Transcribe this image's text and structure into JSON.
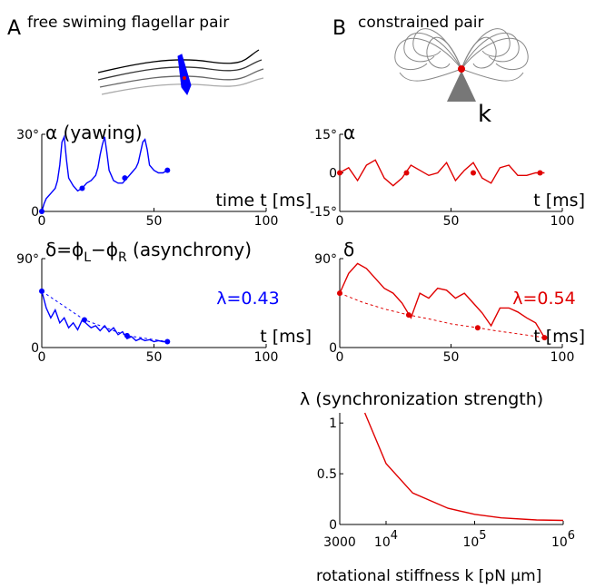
{
  "panels": [
    {
      "letter": "A",
      "title": "free swiming flagellar pair"
    },
    {
      "letter": "B",
      "title": "constrained pair"
    }
  ],
  "schematic_label": "k",
  "chart_data": [
    {
      "type": "line",
      "ylabel": [
        "α (yawing)"
      ],
      "xlabel": "time t [ms]",
      "xlim": [
        0,
        100
      ],
      "xticks": [
        0,
        50,
        100
      ],
      "ylim": [
        0,
        30
      ],
      "yticks": [
        {
          "value": 30,
          "label": "30°"
        },
        0
      ],
      "series": [
        {
          "color": "#0000ff",
          "x": [
            0,
            1,
            2,
            3,
            4,
            5,
            6,
            7,
            8,
            9,
            10,
            11,
            12,
            14,
            16,
            18,
            20,
            22,
            24,
            25,
            26,
            27,
            28,
            29,
            30,
            32,
            34,
            36,
            38,
            40,
            42,
            43,
            44,
            45,
            46,
            47,
            48,
            50,
            52,
            54,
            56
          ],
          "values": [
            0,
            3,
            5,
            6,
            7,
            8,
            9,
            12,
            18,
            27,
            29,
            20,
            13,
            10,
            8,
            9,
            11,
            12,
            14,
            17,
            22,
            26,
            29,
            23,
            16,
            12,
            11,
            11,
            13,
            15,
            17,
            19,
            23,
            27,
            28,
            24,
            18,
            16,
            15,
            15,
            16
          ]
        },
        {
          "color": "#0000ff",
          "marker": true,
          "x": [
            0,
            18,
            37,
            56
          ],
          "values": [
            0,
            9,
            13,
            16
          ]
        }
      ]
    },
    {
      "type": "line",
      "ylabel": [
        "δ=ϕ",
        "L",
        "−ϕ",
        "R",
        " (asynchrony)"
      ],
      "xlabel": "t [ms]",
      "annotation": "λ=0.43",
      "annotation_color": "#0000ff",
      "xlim": [
        0,
        100
      ],
      "xticks": [
        0,
        50,
        100
      ],
      "ylim": [
        0,
        90
      ],
      "yticks": [
        {
          "value": 90,
          "label": "90°"
        },
        0
      ],
      "series": [
        {
          "color": "#0000ff",
          "x": [
            0,
            2,
            4,
            6,
            8,
            10,
            12,
            14,
            16,
            18,
            20,
            22,
            24,
            26,
            28,
            30,
            32,
            34,
            36,
            38,
            40,
            42,
            44,
            46,
            48,
            50,
            52,
            54,
            56
          ],
          "values": [
            57,
            40,
            30,
            38,
            25,
            30,
            20,
            25,
            18,
            28,
            24,
            20,
            22,
            17,
            22,
            16,
            20,
            13,
            16,
            9,
            11,
            7,
            9,
            7,
            8,
            6,
            7,
            6,
            6
          ]
        },
        {
          "color": "#0000ff",
          "style": "dashed",
          "x": [
            0,
            19,
            38,
            56
          ],
          "values": [
            57,
            28,
            12,
            6
          ]
        },
        {
          "color": "#0000ff",
          "marker": true,
          "x": [
            0,
            19,
            38,
            56
          ],
          "values": [
            57,
            28,
            12,
            6
          ]
        }
      ]
    },
    {
      "type": "line",
      "ylabel": [
        "α"
      ],
      "xlabel": "t [ms]",
      "xlim": [
        0,
        100
      ],
      "xticks": [
        0,
        50,
        100
      ],
      "ylim": [
        -15,
        15
      ],
      "yticks": [
        {
          "value": 15,
          "label": "15°"
        },
        0,
        {
          "value": -15,
          "label": "-15°"
        }
      ],
      "series": [
        {
          "color": "#e00000",
          "x": [
            0,
            4,
            8,
            12,
            16,
            20,
            24,
            28,
            32,
            36,
            40,
            44,
            48,
            52,
            56,
            60,
            64,
            68,
            72,
            76,
            80,
            84,
            88,
            92
          ],
          "values": [
            0,
            2,
            -3,
            3,
            5,
            -2,
            -5,
            -2,
            3,
            1,
            -1,
            0,
            4,
            -3,
            1,
            4,
            -2,
            -4,
            2,
            3,
            -1,
            -1,
            0,
            0
          ]
        },
        {
          "color": "#e00000",
          "marker": true,
          "x": [
            0,
            30,
            60,
            90
          ],
          "values": [
            0,
            0,
            0,
            0
          ]
        }
      ]
    },
    {
      "type": "line",
      "ylabel": [
        "δ"
      ],
      "xlabel": "t [ms]",
      "annotation": "λ=0.54",
      "annotation_color": "#e00000",
      "xlim": [
        0,
        100
      ],
      "xticks": [
        0,
        50,
        100
      ],
      "ylim": [
        0,
        90
      ],
      "yticks": [
        {
          "value": 90,
          "label": "90°"
        },
        0
      ],
      "series": [
        {
          "color": "#e00000",
          "x": [
            0,
            4,
            8,
            12,
            16,
            20,
            24,
            28,
            32,
            36,
            40,
            44,
            48,
            52,
            56,
            60,
            64,
            68,
            72,
            76,
            80,
            84,
            88,
            92
          ],
          "values": [
            55,
            75,
            85,
            80,
            70,
            60,
            55,
            45,
            30,
            55,
            50,
            60,
            58,
            50,
            55,
            45,
            35,
            22,
            40,
            40,
            36,
            30,
            25,
            10
          ]
        },
        {
          "color": "#e00000",
          "style": "dashed",
          "x": [
            0,
            10,
            20,
            31,
            40,
            50,
            62,
            70,
            80,
            92
          ],
          "values": [
            55,
            46,
            39,
            33,
            29,
            24,
            20,
            17,
            14,
            10
          ]
        },
        {
          "color": "#e00000",
          "marker": true,
          "x": [
            0,
            31,
            62,
            92
          ],
          "values": [
            55,
            33,
            20,
            10
          ]
        }
      ]
    },
    {
      "type": "line",
      "title": "λ (synchronization strength)",
      "xlabel": "rotational stiffness k [pN μm]",
      "xscale": "log",
      "xlim": [
        3000,
        1000000
      ],
      "xticks": [
        3000,
        {
          "value": 10000,
          "label": "10",
          "exponent": "4"
        },
        {
          "value": 100000,
          "label": "10",
          "exponent": "5"
        },
        {
          "value": 1000000,
          "label": "10",
          "exponent": "6"
        }
      ],
      "ylim": [
        0,
        1.1
      ],
      "yticks": [
        0,
        0.5,
        1
      ],
      "series": [
        {
          "color": "#e00000",
          "x": [
            5750,
            10000,
            20000,
            50000,
            100000,
            200000,
            500000,
            1000000
          ],
          "values": [
            1.1,
            0.6,
            0.31,
            0.16,
            0.1,
            0.065,
            0.045,
            0.04
          ]
        }
      ]
    }
  ]
}
